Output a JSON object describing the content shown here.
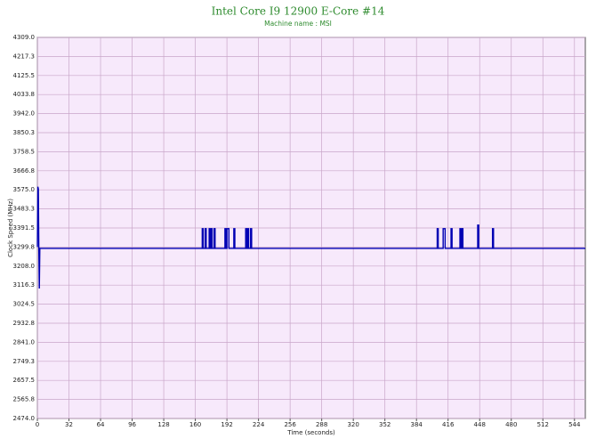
{
  "chart_data": {
    "type": "line",
    "title": "Intel Core I9 12900 E-Core #14",
    "subtitle": "Machine name : MSI",
    "x_label": "Time (seconds)",
    "y_label": "Clock Speed (MHz)",
    "xlim": [
      0,
      555
    ],
    "ylim": [
      2474,
      4309
    ],
    "xticks": [
      0,
      32,
      64,
      96,
      128,
      160,
      192,
      224,
      256,
      288,
      320,
      352,
      384,
      416,
      448,
      480,
      512,
      544
    ],
    "yticks": [
      {
        "value": 2474,
        "label": "2474.0"
      },
      2565.8,
      2657.5,
      2749.3,
      {
        "value": 2841,
        "label": "2841.0"
      },
      2932.8,
      3024.5,
      3116.3,
      {
        "value": 3208,
        "label": "3208.0"
      },
      3299.8,
      3391.5,
      3483.3,
      {
        "value": 3575,
        "label": "3575.0"
      },
      3666.8,
      3758.5,
      3850.3,
      {
        "value": 3942,
        "label": "3942.0"
      },
      4033.8,
      4125.5,
      4217.3,
      {
        "value": 4309,
        "label": "4309.0"
      }
    ],
    "grid": true,
    "x": [
      0,
      0.5,
      1,
      1.5,
      2,
      2.5,
      3,
      167,
      167,
      168,
      168,
      170,
      170,
      171,
      171,
      174,
      174,
      175,
      175,
      176,
      176,
      177,
      177,
      179,
      179,
      180,
      180,
      190,
      190,
      191,
      191,
      192,
      192,
      194,
      194,
      199,
      199,
      200,
      200,
      211,
      211,
      212,
      212,
      213,
      213,
      214,
      214,
      216,
      216,
      217,
      217,
      405,
      405,
      406,
      406,
      411,
      411,
      413,
      413,
      419,
      419,
      420,
      420,
      428,
      428,
      429,
      429,
      430,
      430,
      431,
      431,
      446,
      446,
      447,
      447,
      461,
      461,
      462,
      462,
      555
    ],
    "series": [
      {
        "name": "E-Core #14",
        "color": "#0000b4",
        "values": [
          3300,
          3590,
          3580,
          3290,
          3100,
          3293,
          3293,
          3293,
          3388,
          3388,
          3293,
          3293,
          3388,
          3388,
          3293,
          3293,
          3388,
          3388,
          3293,
          3293,
          3388,
          3388,
          3293,
          3293,
          3388,
          3388,
          3293,
          3293,
          3388,
          3388,
          3293,
          3293,
          3388,
          3388,
          3293,
          3293,
          3388,
          3388,
          3293,
          3293,
          3388,
          3388,
          3293,
          3293,
          3388,
          3388,
          3293,
          3293,
          3388,
          3388,
          3293,
          3293,
          3388,
          3388,
          3293,
          3293,
          3388,
          3388,
          3293,
          3293,
          3388,
          3388,
          3293,
          3293,
          3388,
          3388,
          3293,
          3293,
          3388,
          3388,
          3293,
          3293,
          3405,
          3405,
          3293,
          3293,
          3388,
          3388,
          3293,
          3293
        ]
      }
    ]
  }
}
